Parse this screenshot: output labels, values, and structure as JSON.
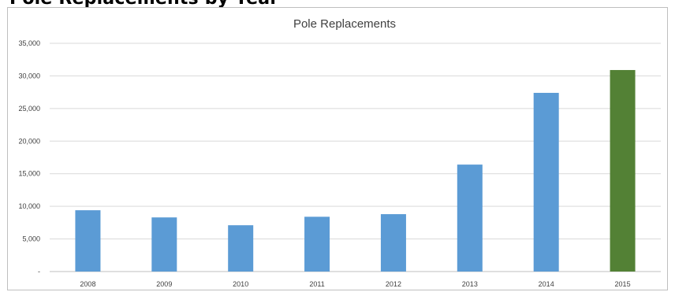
{
  "clipped_heading": "Pole Replacements by Year",
  "chart_data": {
    "type": "bar",
    "title": "Pole Replacements",
    "xlabel": "",
    "ylabel": "",
    "categories": [
      "2008",
      "2009",
      "2010",
      "2011",
      "2012",
      "2013",
      "2014",
      "2015"
    ],
    "values": [
      9400,
      8300,
      7100,
      8400,
      8800,
      16400,
      27400,
      30900
    ],
    "bar_colors": [
      "#5b9bd5",
      "#5b9bd5",
      "#5b9bd5",
      "#5b9bd5",
      "#5b9bd5",
      "#5b9bd5",
      "#5b9bd5",
      "#538135"
    ],
    "ylim": [
      0,
      35000
    ],
    "yticks": [
      0,
      5000,
      10000,
      15000,
      20000,
      25000,
      30000,
      35000
    ],
    "ytick_labels": [
      "-",
      "5,000",
      "10,000",
      "15,000",
      "20,000",
      "25,000",
      "30,000",
      "35,000"
    ],
    "grid": true,
    "legend": "none"
  }
}
